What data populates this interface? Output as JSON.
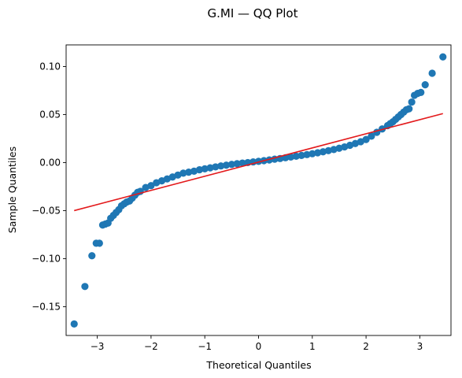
{
  "chart_data": {
    "type": "scatter",
    "title": "G.MI — QQ Plot",
    "xlabel": "Theoretical Quantiles",
    "ylabel": "Sample Quantiles",
    "xlim": [
      -3.58,
      3.58
    ],
    "ylim": [
      -0.18,
      0.1225
    ],
    "xticks": [
      -3,
      -2,
      -1,
      0,
      1,
      2,
      3
    ],
    "xtick_labels": [
      "−3",
      "−2",
      "−1",
      "0",
      "1",
      "2",
      "3"
    ],
    "yticks": [
      -0.15,
      -0.1,
      -0.05,
      0.0,
      0.05,
      0.1
    ],
    "ytick_labels": [
      "−0.15",
      "−0.10",
      "−0.05",
      "0.00",
      "0.05",
      "0.10"
    ],
    "grid": false,
    "series": [
      {
        "marker": "circle",
        "color": "#1f77b4",
        "x": [
          -3.43,
          -3.23,
          -3.1,
          -3.02,
          -2.96,
          -2.9,
          -2.85,
          -2.8,
          -2.75,
          -2.7,
          -2.65,
          -2.6,
          -2.55,
          -2.5,
          -2.45,
          -2.4,
          -2.35,
          -2.3,
          -2.25,
          -2.2,
          -2.1,
          -2.0,
          -1.9,
          -1.8,
          -1.7,
          -1.6,
          -1.5,
          -1.4,
          -1.3,
          -1.2,
          -1.1,
          -1.0,
          -0.9,
          -0.8,
          -0.7,
          -0.6,
          -0.5,
          -0.4,
          -0.3,
          -0.2,
          -0.1,
          0.0,
          0.1,
          0.2,
          0.3,
          0.4,
          0.5,
          0.6,
          0.7,
          0.8,
          0.9,
          1.0,
          1.1,
          1.2,
          1.3,
          1.4,
          1.5,
          1.6,
          1.7,
          1.8,
          1.9,
          2.0,
          2.1,
          2.2,
          2.3,
          2.4,
          2.45,
          2.5,
          2.55,
          2.6,
          2.65,
          2.7,
          2.75,
          2.8,
          2.85,
          2.9,
          2.96,
          3.02,
          3.1,
          3.23,
          3.43
        ],
        "y": [
          -0.168,
          -0.129,
          -0.097,
          -0.084,
          -0.084,
          -0.065,
          -0.064,
          -0.063,
          -0.058,
          -0.055,
          -0.052,
          -0.049,
          -0.045,
          -0.043,
          -0.041,
          -0.04,
          -0.037,
          -0.034,
          -0.031,
          -0.03,
          -0.026,
          -0.024,
          -0.021,
          -0.019,
          -0.017,
          -0.015,
          -0.013,
          -0.011,
          -0.01,
          -0.009,
          -0.0075,
          -0.0065,
          -0.0055,
          -0.0045,
          -0.0035,
          -0.0027,
          -0.0019,
          -0.0012,
          -0.0005,
          0.0,
          0.0007,
          0.0013,
          0.002,
          0.0027,
          0.0035,
          0.0042,
          0.005,
          0.0058,
          0.0066,
          0.0074,
          0.0083,
          0.0092,
          0.0102,
          0.0112,
          0.0124,
          0.0136,
          0.0149,
          0.0163,
          0.018,
          0.0198,
          0.0217,
          0.024,
          0.0275,
          0.0315,
          0.035,
          0.0385,
          0.0405,
          0.0425,
          0.045,
          0.0475,
          0.05,
          0.0525,
          0.055,
          0.056,
          0.063,
          0.07,
          0.072,
          0.073,
          0.081,
          0.093,
          0.11
        ]
      }
    ],
    "reference_line": {
      "color": "#e31a1c",
      "x": [
        -3.43,
        3.43
      ],
      "y": [
        -0.05,
        0.051
      ]
    }
  }
}
